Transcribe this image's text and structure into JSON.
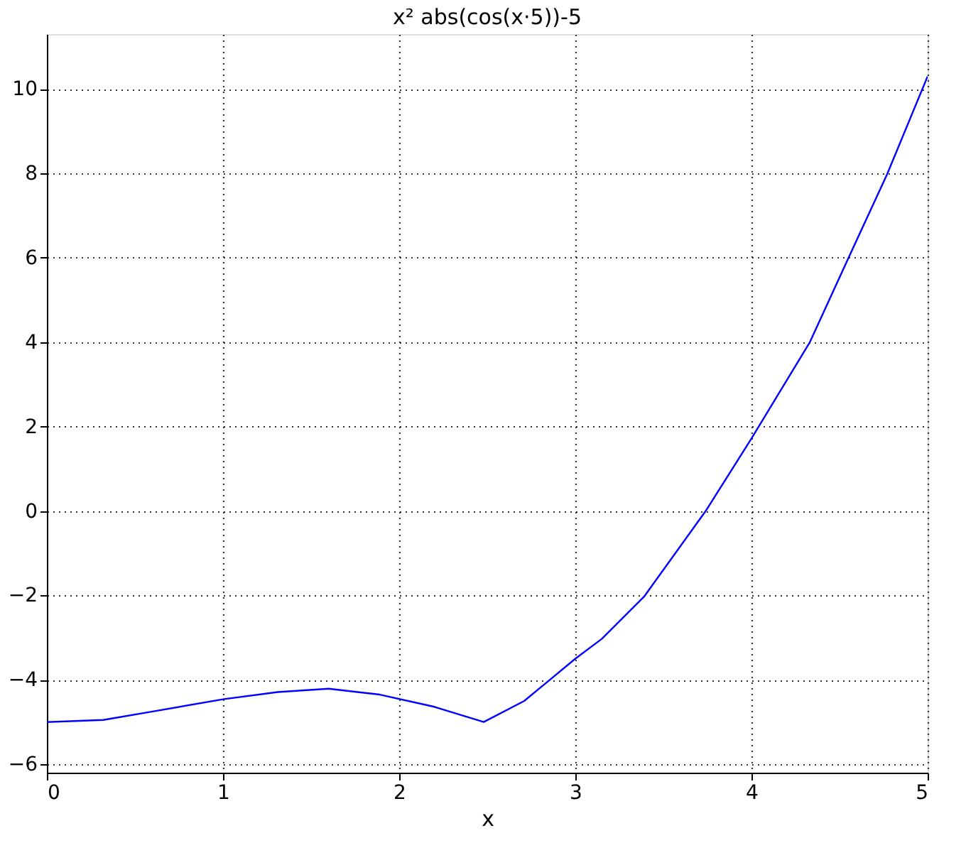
{
  "chart_data": {
    "type": "line",
    "title": "x² abs(cos(x·5))-5",
    "xlabel": "x",
    "xlim": [
      0,
      5
    ],
    "xticks": [
      0,
      1,
      2,
      3,
      4,
      5
    ],
    "ylim": [
      -6.2,
      11.3
    ],
    "yticks": [
      -6,
      -4,
      -2,
      0,
      2,
      4,
      6,
      8,
      10
    ],
    "grid": true,
    "marker": "none",
    "line_style": "solid",
    "series": [
      {
        "color": "#0000ff",
        "x": [
          0,
          0.32,
          0.6,
          1,
          1.31,
          1.6,
          1.89,
          2.2,
          2.48,
          2.71,
          3,
          3.15,
          3.39,
          3.74,
          4,
          4.33,
          4.55,
          4.77,
          5
        ],
        "values": [
          -5,
          -4.95,
          -4.75,
          -4.46,
          -4.29,
          -4.21,
          -4.35,
          -4.64,
          -5,
          -4.5,
          -3.5,
          -3.03,
          -2.03,
          0,
          1.72,
          3.99,
          5.99,
          7.98,
          10.3
        ]
      }
    ]
  }
}
